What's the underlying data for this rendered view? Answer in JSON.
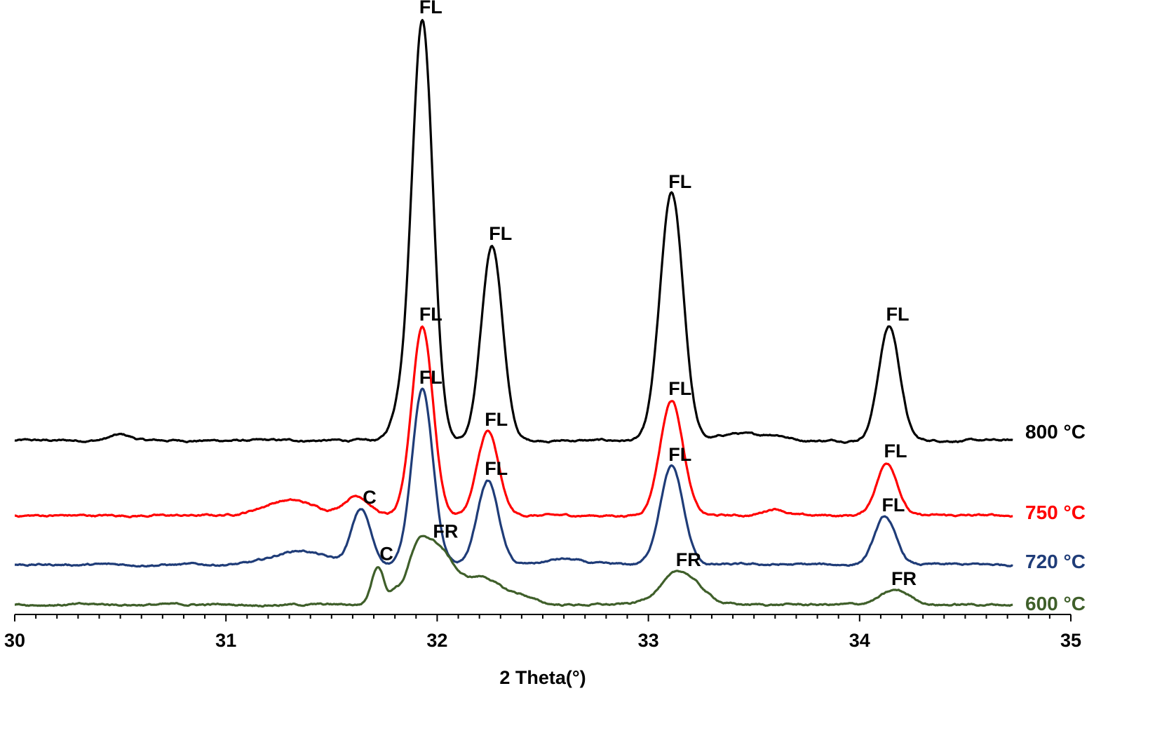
{
  "chart_data": {
    "type": "line",
    "xlabel": "2 Theta(°)",
    "ylabel": "",
    "xlim": [
      30,
      35
    ],
    "x_ticks": [
      "30",
      "31",
      "32",
      "33",
      "34",
      "35"
    ],
    "x_minor_step": 0.1,
    "y_axis_visible": false,
    "grid": false,
    "series": [
      {
        "name": "800 °C",
        "color": "#000000",
        "peaks": [
          {
            "x": 31.93,
            "height": 600,
            "width": 0.05
          },
          {
            "x": 32.26,
            "height": 278,
            "width": 0.05
          },
          {
            "x": 33.11,
            "height": 352,
            "width": 0.055
          },
          {
            "x": 34.14,
            "height": 163,
            "width": 0.05
          },
          {
            "x": 31.82,
            "height": 35,
            "width": 0.04
          },
          {
            "x": 33.42,
            "height": 10,
            "width": 0.08
          },
          {
            "x": 33.6,
            "height": 8,
            "width": 0.06
          },
          {
            "x": 30.5,
            "height": 8,
            "width": 0.05
          }
        ],
        "annotations": [
          {
            "text": "FL",
            "x": 31.93
          },
          {
            "text": "FL",
            "x": 32.26
          },
          {
            "text": "FL",
            "x": 33.11
          },
          {
            "text": "FL",
            "x": 34.14
          }
        ]
      },
      {
        "name": "750 °C",
        "color": "#ff0000",
        "peaks": [
          {
            "x": 31.93,
            "height": 270,
            "width": 0.05
          },
          {
            "x": 32.24,
            "height": 120,
            "width": 0.05
          },
          {
            "x": 33.11,
            "height": 164,
            "width": 0.055
          },
          {
            "x": 34.13,
            "height": 75,
            "width": 0.05
          },
          {
            "x": 31.62,
            "height": 28,
            "width": 0.06
          },
          {
            "x": 31.3,
            "height": 22,
            "width": 0.12
          },
          {
            "x": 33.6,
            "height": 10,
            "width": 0.05
          }
        ],
        "annotations": [
          {
            "text": "FL",
            "x": 31.93
          },
          {
            "text": "FL",
            "x": 32.24
          },
          {
            "text": "FL",
            "x": 33.11
          },
          {
            "text": "FL",
            "x": 34.13
          }
        ]
      },
      {
        "name": "720 °C",
        "color": "#1f3c78",
        "peaks": [
          {
            "x": 31.93,
            "height": 250,
            "width": 0.05
          },
          {
            "x": 31.64,
            "height": 78,
            "width": 0.045
          },
          {
            "x": 32.24,
            "height": 120,
            "width": 0.05
          },
          {
            "x": 33.11,
            "height": 140,
            "width": 0.055
          },
          {
            "x": 34.12,
            "height": 68,
            "width": 0.05
          },
          {
            "x": 31.35,
            "height": 20,
            "width": 0.12
          },
          {
            "x": 32.6,
            "height": 8,
            "width": 0.08
          }
        ],
        "annotations": [
          {
            "text": "C",
            "x": 31.64
          },
          {
            "text": "FL",
            "x": 31.93
          },
          {
            "text": "FL",
            "x": 32.24
          },
          {
            "text": "FL",
            "x": 33.11
          },
          {
            "text": "FL",
            "x": 34.12
          }
        ]
      },
      {
        "name": "600 °C",
        "color": "#3f5f2a",
        "peaks": [
          {
            "x": 31.72,
            "height": 55,
            "width": 0.03
          },
          {
            "x": 31.8,
            "height": 14,
            "width": 0.02
          },
          {
            "x": 32.0,
            "height": 80,
            "width": 0.08
          },
          {
            "x": 31.9,
            "height": 50,
            "width": 0.05
          },
          {
            "x": 32.22,
            "height": 38,
            "width": 0.08
          },
          {
            "x": 32.4,
            "height": 12,
            "width": 0.06
          },
          {
            "x": 33.15,
            "height": 47,
            "width": 0.09
          },
          {
            "x": 34.17,
            "height": 20,
            "width": 0.07
          }
        ],
        "annotations": [
          {
            "text": "C",
            "x": 31.72
          },
          {
            "text": "FR",
            "x": 32.0
          },
          {
            "text": "FR",
            "x": 33.15
          },
          {
            "text": "FR",
            "x": 34.17
          }
        ]
      }
    ]
  }
}
